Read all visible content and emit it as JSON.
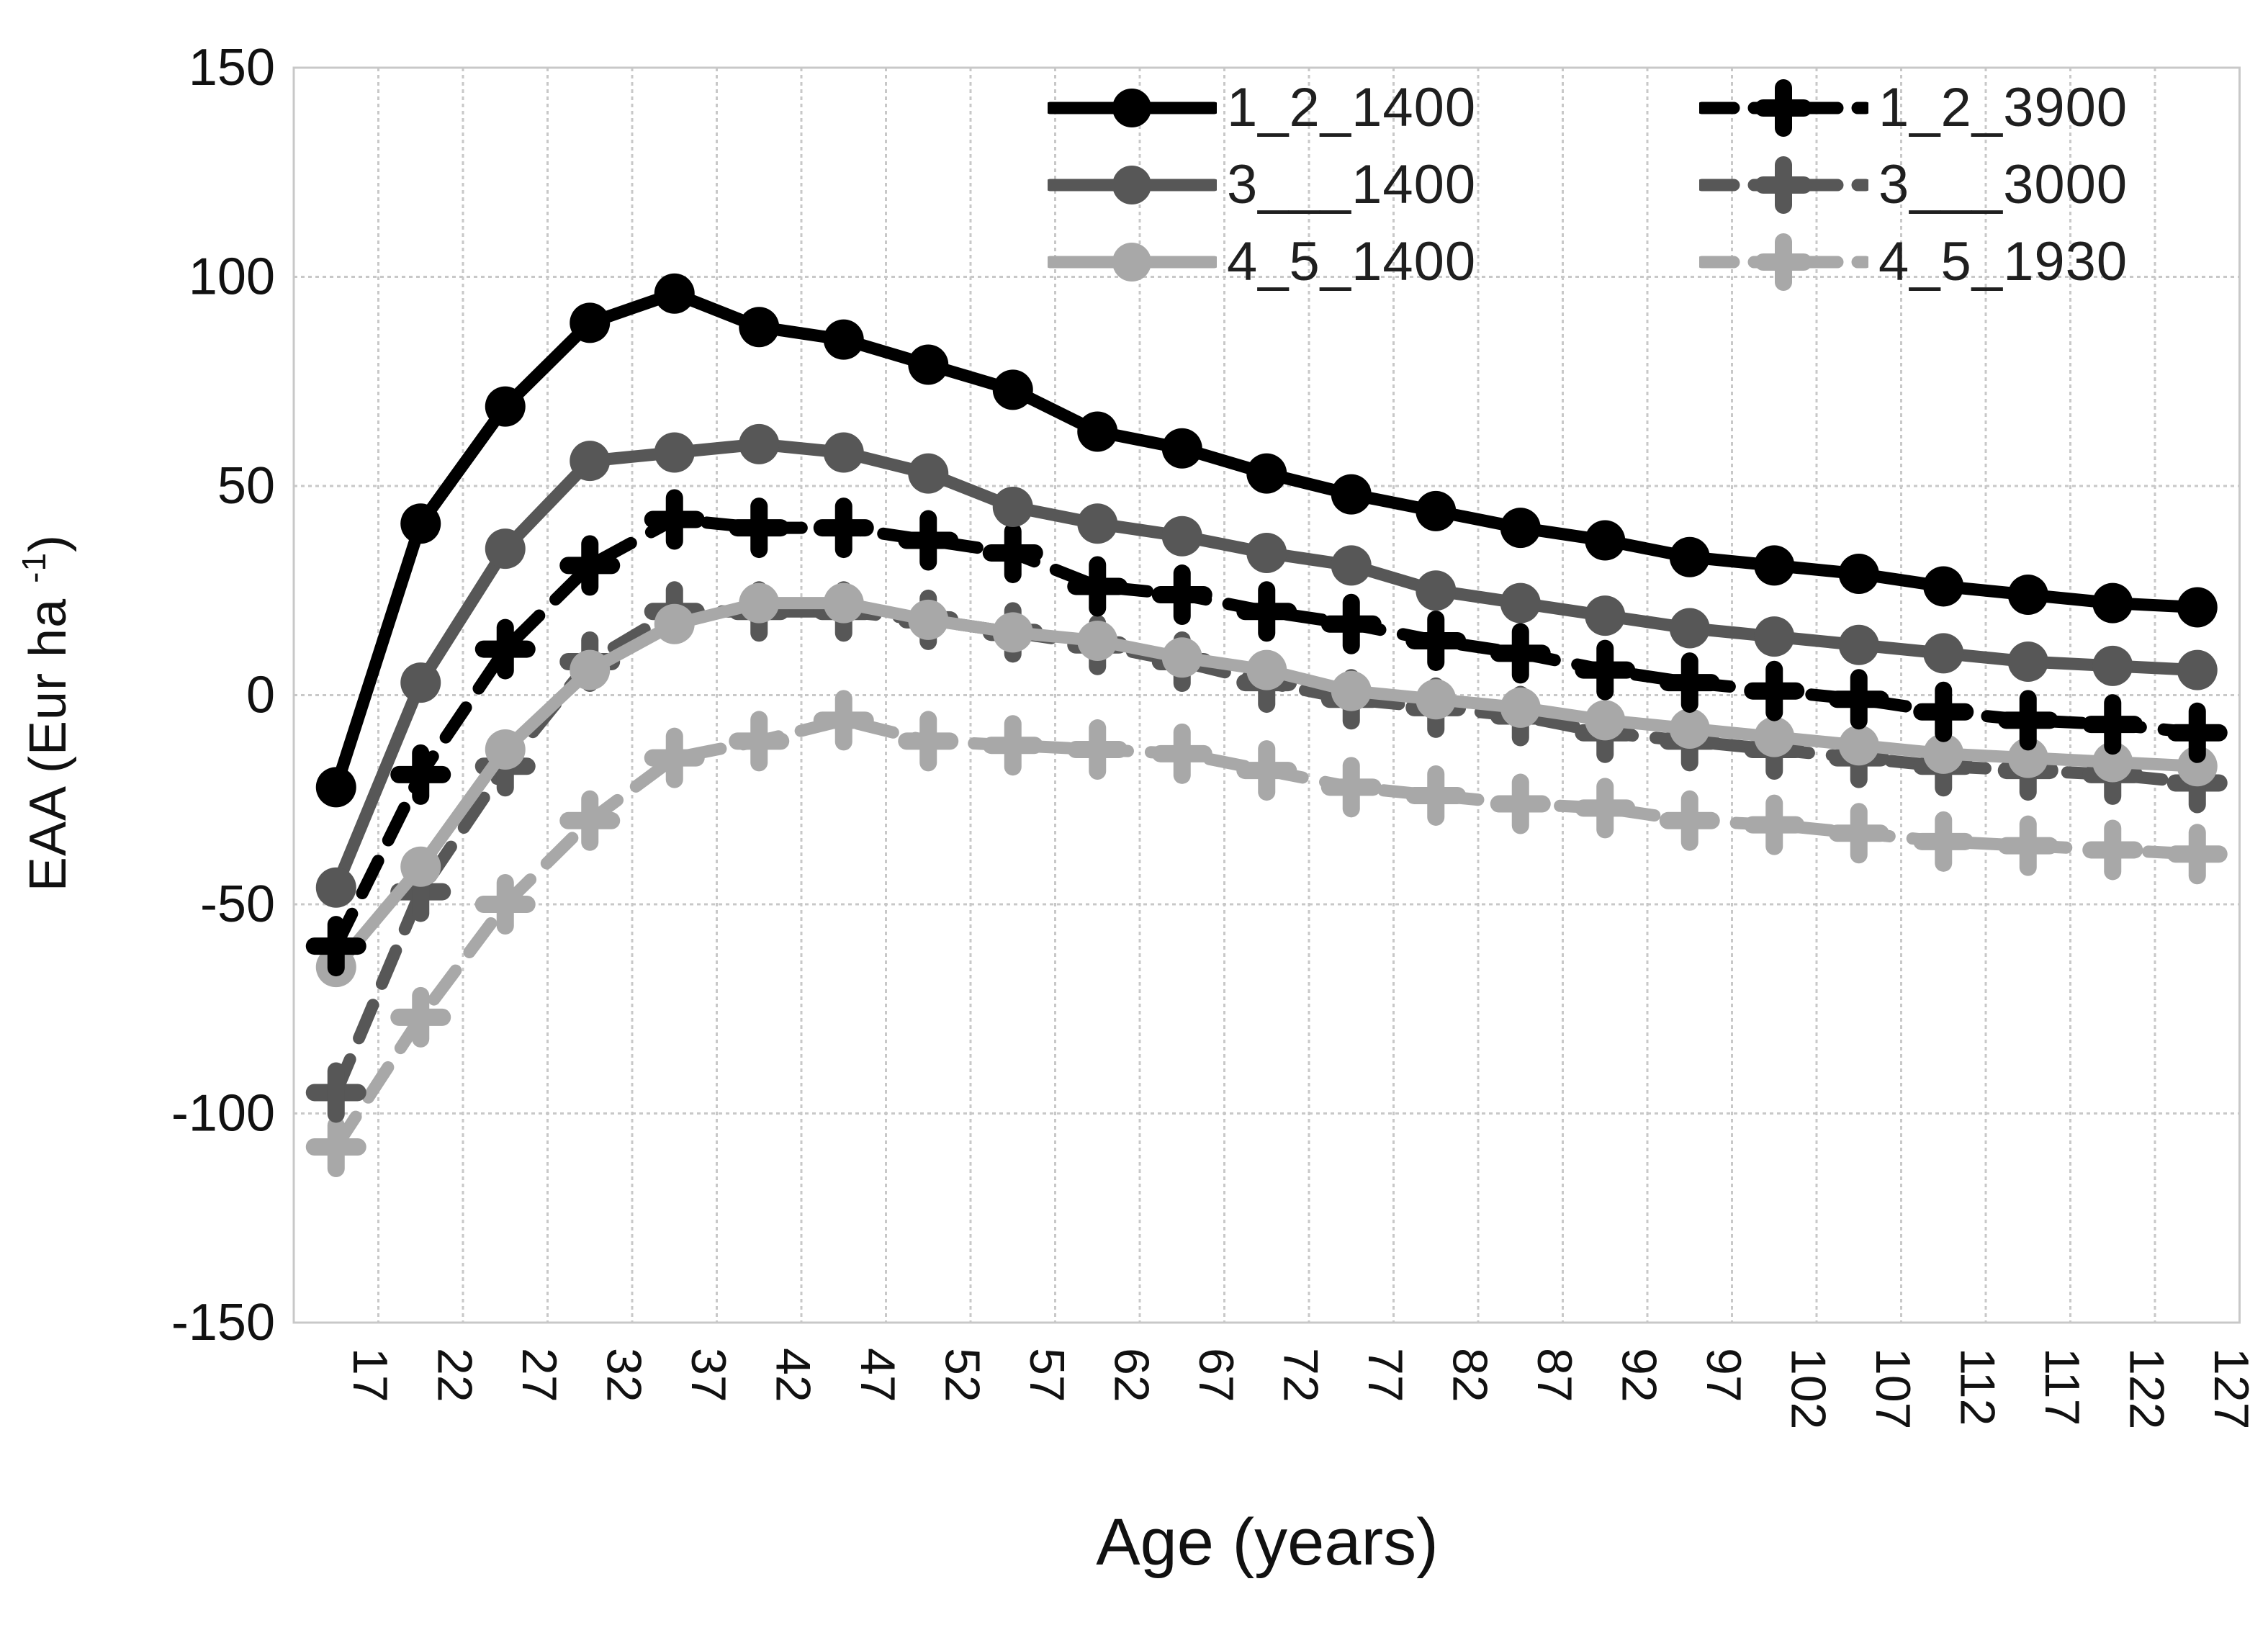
{
  "figure": {
    "y_axis": {
      "title_pre": "EAA (Eur ha ",
      "title_sup": "-1",
      "title_post": ")",
      "ticks": [
        150,
        100,
        50,
        0,
        -50,
        -100,
        -150
      ]
    },
    "x_axis": {
      "title": "Age (years)"
    }
  },
  "chart_data": {
    "type": "line",
    "title": "",
    "xlabel": "Age (years)",
    "ylabel": "EAA (Eur ha -1)",
    "ylim": [
      -150,
      150
    ],
    "x_range": [
      17,
      127
    ],
    "grid": true,
    "legend_position": "top-inside-two-columns",
    "background": "#ffffff",
    "gridline_color": "#c8c8c8",
    "x": [
      17,
      22,
      27,
      32,
      37,
      42,
      47,
      52,
      57,
      62,
      67,
      72,
      77,
      82,
      87,
      92,
      97,
      102,
      107,
      112,
      117,
      122,
      127
    ],
    "series": [
      {
        "name": "1_2_1400",
        "style": "solid",
        "marker": "circle",
        "color": "#000000",
        "values": [
          -22,
          41,
          69,
          89,
          96,
          88,
          85,
          79,
          73,
          63,
          59,
          53,
          48,
          44,
          40,
          37,
          33,
          31,
          29,
          26,
          24,
          22,
          21
        ]
      },
      {
        "name": "1_2_3900",
        "style": "dashed",
        "marker": "plus",
        "color": "#000000",
        "values": [
          -60,
          -19,
          11,
          31,
          42,
          40,
          40,
          37,
          34,
          26,
          24,
          20,
          17,
          13,
          10,
          6,
          3,
          1,
          -1,
          -4,
          -6,
          -7,
          -9
        ]
      },
      {
        "name": "3___1400",
        "style": "solid",
        "marker": "circle",
        "color": "#575757",
        "values": [
          -46,
          3,
          35,
          56,
          58,
          60,
          58,
          53,
          45,
          41,
          38,
          34,
          31,
          25,
          22,
          19,
          16,
          14,
          12,
          10,
          8,
          7,
          6
        ]
      },
      {
        "name": "3___3000",
        "style": "dashed",
        "marker": "plus",
        "color": "#575757",
        "values": [
          -95,
          -47,
          -17,
          8,
          20,
          20,
          20,
          18,
          15,
          12,
          8,
          3,
          -1,
          -3,
          -5,
          -9,
          -11,
          -13,
          -15,
          -17,
          -18,
          -19,
          -21
        ]
      },
      {
        "name": "4_5_1400",
        "style": "solid",
        "marker": "circle",
        "color": "#a8a8a8",
        "values": [
          -65,
          -41,
          -13,
          6,
          17,
          22,
          22,
          18,
          15,
          13,
          9,
          6,
          1,
          -1,
          -3,
          -6,
          -8,
          -10,
          -12,
          -14,
          -15,
          -16,
          -17
        ]
      },
      {
        "name": "4_5_1930",
        "style": "dashed",
        "marker": "plus",
        "color": "#a8a8a8",
        "values": [
          -108,
          -77,
          -50,
          -30,
          -15,
          -11,
          -6,
          -11,
          -12,
          -13,
          -14,
          -18,
          -22,
          -24,
          -26,
          -27,
          -30,
          -31,
          -33,
          -35,
          -36,
          -37,
          -38
        ]
      }
    ]
  }
}
